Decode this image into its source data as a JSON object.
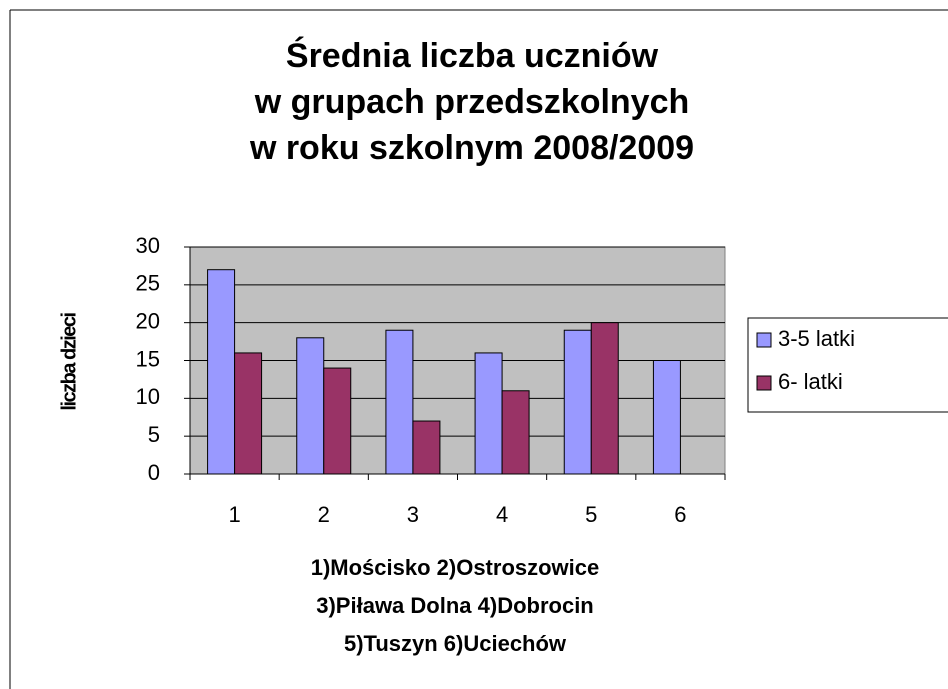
{
  "chart_data": {
    "type": "bar",
    "title": [
      "Średnia liczba uczniów",
      "w grupach przedszkolnych",
      "w roku szkolnym 2008/2009"
    ],
    "x_label": [
      "1)Mościsko 2)Ostroszowice",
      "3)Piława Dolna 4)Dobrocin",
      "5)Tuszyn 6)Uciechów"
    ],
    "y_label": "liczba dzieci",
    "categories": [
      1,
      2,
      3,
      4,
      5,
      6
    ],
    "series": [
      {
        "name": "3-5 latki",
        "color": "#9999ff",
        "values": [
          27,
          18,
          19,
          16,
          19,
          15
        ]
      },
      {
        "name": "6- latki",
        "color": "#993366",
        "values": [
          16,
          14,
          7,
          11,
          20,
          null
        ]
      }
    ],
    "ylim": [
      0,
      30
    ],
    "yticks": [
      0,
      5,
      10,
      15,
      20,
      25,
      30
    ],
    "grid": true,
    "legend": "right"
  }
}
